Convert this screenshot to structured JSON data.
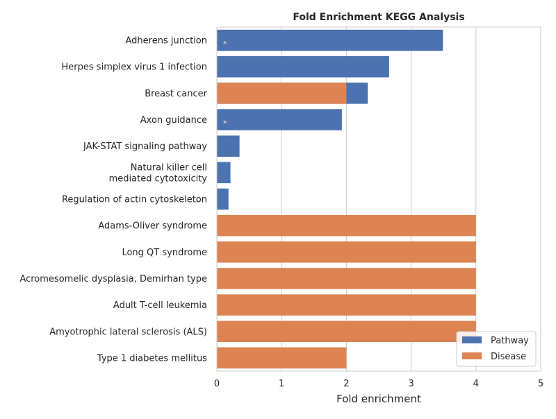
{
  "chart_data": {
    "type": "bar",
    "orientation": "horizontal",
    "title": "Fold Enrichment KEGG Analysis",
    "xlabel": "Fold enrichment",
    "ylabel": "",
    "xlim": [
      0,
      5
    ],
    "xticks": [
      "0",
      "1",
      "2",
      "3",
      "4",
      "5"
    ],
    "grid": "vertical",
    "legend_position": "bottom-right",
    "legend": [
      {
        "name": "Pathway",
        "color": "#4c72b0"
      },
      {
        "name": "Disease",
        "color": "#dd8452"
      }
    ],
    "categories": [
      [
        "Adherens junction"
      ],
      [
        "Herpes simplex virus 1 infection"
      ],
      [
        "Breast cancer"
      ],
      [
        "Axon guidance"
      ],
      [
        "JAK-STAT signaling pathway"
      ],
      [
        "Natural killer cell",
        "mediated cytotoxicity"
      ],
      [
        "Regulation of actin cytoskeleton"
      ],
      [
        "Adams-Oliver syndrome"
      ],
      [
        "Long QT syndrome"
      ],
      [
        "Acromesomelic dysplasia, Demirhan type"
      ],
      [
        "Adult T-cell leukemia"
      ],
      [
        "Amyotrophic lateral sclerosis (ALS)"
      ],
      [
        "Type 1 diabetes mellitus"
      ]
    ],
    "series": [
      {
        "name": "Pathway",
        "color": "#4c72b0",
        "values": [
          3.49,
          2.66,
          2.33,
          1.93,
          0.35,
          0.21,
          0.18,
          null,
          null,
          null,
          null,
          null,
          null
        ]
      },
      {
        "name": "Disease",
        "color": "#dd8452",
        "values": [
          null,
          null,
          2.0,
          null,
          null,
          null,
          null,
          4.0,
          4.0,
          4.0,
          4.0,
          4.0,
          2.0
        ]
      }
    ],
    "annotations": [
      {
        "text": "*",
        "category_index": 0
      },
      {
        "text": "*",
        "category_index": 3
      }
    ]
  }
}
